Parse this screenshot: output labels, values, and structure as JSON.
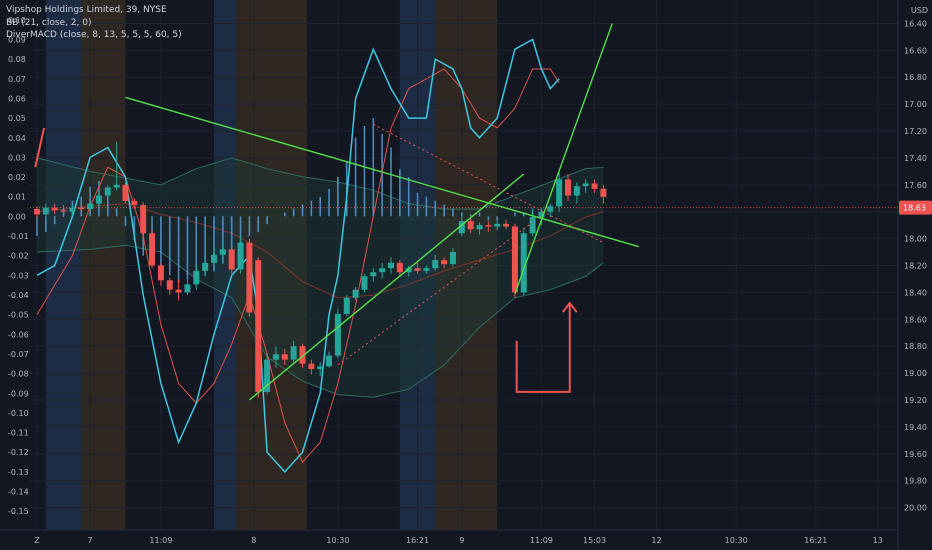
{
  "legend": {
    "title": "Vipshop Holdings Limited, 39, NYSE",
    "bb": "BB (21, close, 2, 0)",
    "macd": "DiverMACD (close, 8, 13, 5, 5, 5, 60, 5)"
  },
  "currency": "USD",
  "current_price_label": "18.63",
  "colors": {
    "background": "#131722",
    "up": "#26a69a",
    "down": "#ef5350",
    "osc_fast": "#3ec7e0",
    "osc_slow": "#e0504a",
    "histogram": "#5b9bd5",
    "bb_band": "#2e6b5e",
    "bb_basis": "#c0392b",
    "trend": "#52e04a",
    "arrow": "#ef5350",
    "session_blue": "#1b2c44",
    "session_orange": "#2f2721"
  },
  "x_axis_labels": [
    {
      "t": 0,
      "text": "Z"
    },
    {
      "t": 6,
      "text": "7"
    },
    {
      "t": 14,
      "text": "11:09"
    },
    {
      "t": 24.5,
      "text": "8"
    },
    {
      "t": 34,
      "text": "10:30"
    },
    {
      "t": 43,
      "text": "16:21"
    },
    {
      "t": 48,
      "text": "9"
    },
    {
      "t": 57,
      "text": "11:09"
    },
    {
      "t": 63,
      "text": "15:03"
    },
    {
      "t": 70,
      "text": "12"
    },
    {
      "t": 79,
      "text": "10:30"
    },
    {
      "t": 88,
      "text": "16:21"
    },
    {
      "t": 95,
      "text": "13"
    }
  ],
  "right_axis_labels": [
    "20.00",
    "19.80",
    "19.60",
    "19.40",
    "19.20",
    "19.00",
    "18.80",
    "18.60",
    "18.40",
    "18.20",
    "18.00",
    "17.80",
    "17.60",
    "17.40",
    "17.20",
    "17.00",
    "16.80",
    "16.60",
    "16.40"
  ],
  "left_axis_labels": [
    "0.10",
    "0.09",
    "0.08",
    "0.07",
    "0.06",
    "0.05",
    "0.04",
    "0.03",
    "0.02",
    "0.01",
    "0.00",
    "-0.01",
    "-0.02",
    "-0.03",
    "-0.04",
    "-0.05",
    "-0.06",
    "-0.07",
    "-0.08",
    "-0.09",
    "-0.10",
    "-0.11",
    "-0.12",
    "-0.13",
    "-0.14",
    "-0.15"
  ],
  "chart_data": {
    "type": "candlestick",
    "symbol": "Vipshop Holdings Limited, 39, NYSE",
    "price_axis_range": [
      16.3,
      20.1
    ],
    "oscillator_axis_range": [
      -0.155,
      0.105
    ],
    "price_ticks": [
      16.4,
      16.6,
      16.8,
      17.0,
      17.2,
      17.4,
      17.6,
      17.8,
      18.0,
      18.2,
      18.4,
      18.6,
      18.8,
      19.0,
      19.2,
      19.4,
      19.6,
      19.8,
      20.0
    ],
    "oscillator_ticks": [
      0.1,
      0.09,
      0.08,
      0.07,
      0.06,
      0.05,
      0.04,
      0.03,
      0.02,
      0.01,
      0.0,
      -0.01,
      -0.02,
      -0.03,
      -0.04,
      -0.05,
      -0.06,
      -0.07,
      -0.08,
      -0.09,
      -0.1,
      -0.11,
      -0.12,
      -0.13,
      -0.14,
      -0.15
    ],
    "candles": [
      {
        "t": 0,
        "o": 18.62,
        "h": 18.64,
        "l": 18.55,
        "c": 18.58
      },
      {
        "t": 1,
        "o": 18.58,
        "h": 18.66,
        "l": 18.52,
        "c": 18.63
      },
      {
        "t": 2,
        "o": 18.63,
        "h": 18.66,
        "l": 18.58,
        "c": 18.61
      },
      {
        "t": 3,
        "o": 18.61,
        "h": 18.65,
        "l": 18.56,
        "c": 18.6
      },
      {
        "t": 4,
        "o": 18.6,
        "h": 18.66,
        "l": 18.57,
        "c": 18.63
      },
      {
        "t": 5,
        "o": 18.63,
        "h": 18.66,
        "l": 18.6,
        "c": 18.62
      },
      {
        "t": 6,
        "o": 18.62,
        "h": 18.68,
        "l": 18.6,
        "c": 18.66
      },
      {
        "t": 7,
        "o": 18.66,
        "h": 18.74,
        "l": 18.64,
        "c": 18.72
      },
      {
        "t": 8,
        "o": 18.72,
        "h": 18.8,
        "l": 18.7,
        "c": 18.78
      },
      {
        "t": 9,
        "o": 18.78,
        "h": 19.12,
        "l": 18.76,
        "c": 18.8
      },
      {
        "t": 10,
        "o": 18.8,
        "h": 18.82,
        "l": 18.66,
        "c": 18.68
      },
      {
        "t": 11,
        "o": 18.68,
        "h": 18.7,
        "l": 18.62,
        "c": 18.65
      },
      {
        "t": 12,
        "o": 18.65,
        "h": 18.67,
        "l": 18.4,
        "c": 18.44
      },
      {
        "t": 13,
        "o": 18.44,
        "h": 18.46,
        "l": 18.18,
        "c": 18.2
      },
      {
        "t": 14,
        "o": 18.2,
        "h": 18.22,
        "l": 18.05,
        "c": 18.09
      },
      {
        "t": 15,
        "o": 18.09,
        "h": 18.11,
        "l": 17.98,
        "c": 18.02
      },
      {
        "t": 16,
        "o": 18.02,
        "h": 18.1,
        "l": 17.94,
        "c": 18.0
      },
      {
        "t": 17,
        "o": 18.0,
        "h": 18.1,
        "l": 17.98,
        "c": 18.06
      },
      {
        "t": 18,
        "o": 18.06,
        "h": 18.2,
        "l": 18.02,
        "c": 18.16
      },
      {
        "t": 19,
        "o": 18.16,
        "h": 18.26,
        "l": 18.12,
        "c": 18.22
      },
      {
        "t": 20,
        "o": 18.22,
        "h": 18.32,
        "l": 18.2,
        "c": 18.28
      },
      {
        "t": 21,
        "o": 18.28,
        "h": 18.36,
        "l": 18.26,
        "c": 18.32
      },
      {
        "t": 22,
        "o": 18.32,
        "h": 18.34,
        "l": 18.14,
        "c": 18.17
      },
      {
        "t": 23,
        "o": 18.17,
        "h": 18.42,
        "l": 18.14,
        "c": 18.37
      },
      {
        "t": 24,
        "o": 18.37,
        "h": 18.4,
        "l": 17.82,
        "c": 17.85
      },
      {
        "t": 25,
        "o": 18.24,
        "h": 18.26,
        "l": 17.22,
        "c": 17.26
      },
      {
        "t": 26,
        "o": 17.26,
        "h": 17.55,
        "l": 17.24,
        "c": 17.5
      },
      {
        "t": 27,
        "o": 17.5,
        "h": 17.6,
        "l": 17.44,
        "c": 17.54
      },
      {
        "t": 28,
        "o": 17.54,
        "h": 17.58,
        "l": 17.46,
        "c": 17.5
      },
      {
        "t": 29,
        "o": 17.5,
        "h": 17.64,
        "l": 17.48,
        "c": 17.6
      },
      {
        "t": 30,
        "o": 17.6,
        "h": 17.62,
        "l": 17.44,
        "c": 17.47
      },
      {
        "t": 31,
        "o": 17.47,
        "h": 17.5,
        "l": 17.39,
        "c": 17.43
      },
      {
        "t": 32,
        "o": 17.43,
        "h": 17.48,
        "l": 17.38,
        "c": 17.45
      },
      {
        "t": 33,
        "o": 17.45,
        "h": 17.56,
        "l": 17.44,
        "c": 17.53
      },
      {
        "t": 34,
        "o": 17.53,
        "h": 17.88,
        "l": 17.51,
        "c": 17.84
      },
      {
        "t": 35,
        "o": 17.84,
        "h": 17.98,
        "l": 17.82,
        "c": 17.96
      },
      {
        "t": 36,
        "o": 17.96,
        "h": 18.04,
        "l": 17.94,
        "c": 18.02
      },
      {
        "t": 37,
        "o": 18.02,
        "h": 18.14,
        "l": 18.0,
        "c": 18.12
      },
      {
        "t": 38,
        "o": 18.12,
        "h": 18.18,
        "l": 18.08,
        "c": 18.15
      },
      {
        "t": 39,
        "o": 18.15,
        "h": 18.22,
        "l": 18.1,
        "c": 18.18
      },
      {
        "t": 40,
        "o": 18.18,
        "h": 18.26,
        "l": 18.14,
        "c": 18.22
      },
      {
        "t": 41,
        "o": 18.22,
        "h": 18.24,
        "l": 18.12,
        "c": 18.15
      },
      {
        "t": 42,
        "o": 18.15,
        "h": 18.2,
        "l": 18.12,
        "c": 18.18
      },
      {
        "t": 43,
        "o": 18.18,
        "h": 18.22,
        "l": 18.14,
        "c": 18.16
      },
      {
        "t": 44,
        "o": 18.16,
        "h": 18.2,
        "l": 18.14,
        "c": 18.18
      },
      {
        "t": 45,
        "o": 18.18,
        "h": 18.28,
        "l": 18.16,
        "c": 18.24
      },
      {
        "t": 46,
        "o": 18.24,
        "h": 18.26,
        "l": 18.18,
        "c": 18.21
      },
      {
        "t": 47,
        "o": 18.21,
        "h": 18.33,
        "l": 18.19,
        "c": 18.3
      },
      {
        "t": 48,
        "o": 18.44,
        "h": 18.58,
        "l": 18.42,
        "c": 18.53
      },
      {
        "t": 49,
        "o": 18.53,
        "h": 18.56,
        "l": 18.44,
        "c": 18.47
      },
      {
        "t": 50,
        "o": 18.47,
        "h": 18.52,
        "l": 18.43,
        "c": 18.5
      },
      {
        "t": 51,
        "o": 18.5,
        "h": 18.53,
        "l": 18.45,
        "c": 18.49
      },
      {
        "t": 52,
        "o": 18.49,
        "h": 18.54,
        "l": 18.46,
        "c": 18.51
      },
      {
        "t": 53,
        "o": 18.51,
        "h": 18.54,
        "l": 18.47,
        "c": 18.49
      },
      {
        "t": 54,
        "o": 18.49,
        "h": 18.51,
        "l": 17.96,
        "c": 18.0
      },
      {
        "t": 55,
        "o": 18.0,
        "h": 18.48,
        "l": 17.98,
        "c": 18.44
      },
      {
        "t": 56,
        "o": 18.44,
        "h": 18.6,
        "l": 18.42,
        "c": 18.56
      },
      {
        "t": 57,
        "o": 18.56,
        "h": 18.62,
        "l": 18.5,
        "c": 18.6
      },
      {
        "t": 58,
        "o": 18.6,
        "h": 18.66,
        "l": 18.56,
        "c": 18.64
      },
      {
        "t": 59,
        "o": 18.64,
        "h": 18.9,
        "l": 18.6,
        "c": 18.84
      },
      {
        "t": 60,
        "o": 18.84,
        "h": 18.88,
        "l": 18.68,
        "c": 18.72
      },
      {
        "t": 61,
        "o": 18.72,
        "h": 18.82,
        "l": 18.66,
        "c": 18.79
      },
      {
        "t": 62,
        "o": 18.79,
        "h": 18.84,
        "l": 18.74,
        "c": 18.81
      },
      {
        "t": 63,
        "o": 18.81,
        "h": 18.84,
        "l": 18.74,
        "c": 18.77
      },
      {
        "t": 64,
        "o": 18.77,
        "h": 18.8,
        "l": 18.66,
        "c": 18.71
      }
    ],
    "bollinger": {
      "upper": [
        [
          0,
          19.0
        ],
        [
          6,
          18.9
        ],
        [
          10,
          18.85
        ],
        [
          14,
          18.8
        ],
        [
          18,
          18.92
        ],
        [
          22,
          19.0
        ],
        [
          26,
          18.92
        ],
        [
          30,
          18.86
        ],
        [
          34,
          18.82
        ],
        [
          38,
          18.76
        ],
        [
          42,
          18.66
        ],
        [
          46,
          18.62
        ],
        [
          50,
          18.62
        ],
        [
          54,
          18.72
        ],
        [
          58,
          18.82
        ],
        [
          62,
          18.92
        ],
        [
          64,
          18.93
        ]
      ],
      "basis": [
        [
          0,
          18.6
        ],
        [
          6,
          18.64
        ],
        [
          10,
          18.66
        ],
        [
          14,
          18.58
        ],
        [
          18,
          18.52
        ],
        [
          22,
          18.44
        ],
        [
          26,
          18.3
        ],
        [
          30,
          18.08
        ],
        [
          34,
          17.96
        ],
        [
          38,
          17.98
        ],
        [
          42,
          18.06
        ],
        [
          46,
          18.16
        ],
        [
          50,
          18.24
        ],
        [
          54,
          18.32
        ],
        [
          58,
          18.42
        ],
        [
          62,
          18.56
        ],
        [
          64,
          18.6
        ]
      ],
      "lower": [
        [
          0,
          18.3
        ],
        [
          6,
          18.32
        ],
        [
          10,
          18.35
        ],
        [
          14,
          18.3
        ],
        [
          18,
          18.1
        ],
        [
          22,
          17.96
        ],
        [
          26,
          17.52
        ],
        [
          30,
          17.34
        ],
        [
          34,
          17.24
        ],
        [
          38,
          17.22
        ],
        [
          42,
          17.28
        ],
        [
          46,
          17.46
        ],
        [
          50,
          17.74
        ],
        [
          54,
          17.96
        ],
        [
          58,
          18.02
        ],
        [
          62,
          18.12
        ],
        [
          64,
          18.22
        ]
      ]
    },
    "oscillator_fast": [
      [
        0,
        -0.03
      ],
      [
        2,
        -0.025
      ],
      [
        4,
        0.0
      ],
      [
        6,
        0.03
      ],
      [
        8,
        0.035
      ],
      [
        10,
        0.02
      ],
      [
        12,
        -0.04
      ],
      [
        14,
        -0.085
      ],
      [
        16,
        -0.115
      ],
      [
        18,
        -0.095
      ],
      [
        20,
        -0.06
      ],
      [
        22,
        -0.03
      ],
      [
        24,
        -0.02
      ],
      [
        25,
        -0.05
      ],
      [
        26,
        -0.12
      ],
      [
        28,
        -0.13
      ],
      [
        30,
        -0.12
      ],
      [
        32,
        -0.09
      ],
      [
        33,
        -0.05
      ],
      [
        34,
        -0.03
      ],
      [
        35,
        0.01
      ],
      [
        36,
        0.06
      ],
      [
        38,
        0.085
      ],
      [
        40,
        0.065
      ],
      [
        42,
        0.05
      ],
      [
        44,
        0.05
      ],
      [
        45,
        0.08
      ],
      [
        47,
        0.075
      ],
      [
        48,
        0.065
      ],
      [
        49,
        0.045
      ],
      [
        50,
        0.04
      ],
      [
        52,
        0.05
      ],
      [
        54,
        0.085
      ],
      [
        56,
        0.09
      ],
      [
        57,
        0.075
      ],
      [
        58,
        0.065
      ],
      [
        59,
        0.07
      ]
    ],
    "oscillator_slow": [
      [
        0,
        -0.05
      ],
      [
        2,
        -0.035
      ],
      [
        4,
        -0.02
      ],
      [
        6,
        0.005
      ],
      [
        8,
        0.025
      ],
      [
        10,
        0.02
      ],
      [
        12,
        -0.01
      ],
      [
        14,
        -0.055
      ],
      [
        16,
        -0.085
      ],
      [
        18,
        -0.095
      ],
      [
        20,
        -0.085
      ],
      [
        22,
        -0.065
      ],
      [
        24,
        -0.04
      ],
      [
        26,
        -0.07
      ],
      [
        28,
        -0.105
      ],
      [
        30,
        -0.125
      ],
      [
        32,
        -0.115
      ],
      [
        34,
        -0.085
      ],
      [
        36,
        -0.045
      ],
      [
        38,
        0.0
      ],
      [
        40,
        0.045
      ],
      [
        42,
        0.065
      ],
      [
        44,
        0.07
      ],
      [
        46,
        0.075
      ],
      [
        48,
        0.065
      ],
      [
        50,
        0.05
      ],
      [
        52,
        0.045
      ],
      [
        54,
        0.055
      ],
      [
        56,
        0.075
      ],
      [
        58,
        0.075
      ],
      [
        59,
        0.068
      ]
    ],
    "histogram": [
      -0.01,
      -0.008,
      -0.004,
      0.004,
      0.008,
      0.01,
      0.015,
      0.018,
      0.012,
      0.004,
      -0.005,
      -0.012,
      -0.02,
      -0.025,
      -0.028,
      -0.03,
      -0.034,
      -0.032,
      -0.035,
      -0.03,
      -0.028,
      -0.024,
      -0.02,
      -0.015,
      -0.01,
      -0.008,
      -0.004,
      0.0,
      0.002,
      0.004,
      0.006,
      0.008,
      0.01,
      0.014,
      0.02,
      0.028,
      0.04,
      0.046,
      0.05,
      0.042,
      0.035,
      0.024,
      0.02,
      0.012,
      0.01,
      0.008,
      0.006,
      0.004,
      0.002,
      0.001,
      0.002,
      -0.002,
      -0.002,
      0.0,
      0.002,
      0.002,
      0.004,
      0.004
    ],
    "sessions": [
      {
        "start": 1,
        "end": 5,
        "kind": "blue"
      },
      {
        "start": 5,
        "end": 10,
        "kind": "orange"
      },
      {
        "start": 20,
        "end": 22.5,
        "kind": "blue"
      },
      {
        "start": 22.5,
        "end": 30.5,
        "kind": "orange"
      },
      {
        "start": 41,
        "end": 45,
        "kind": "blue"
      },
      {
        "start": 45,
        "end": 52,
        "kind": "orange"
      }
    ],
    "trendlines": [
      {
        "from": [
          10,
          19.45
        ],
        "to": [
          68,
          18.34
        ],
        "style": "solid",
        "color": "trend"
      },
      {
        "from": [
          24,
          17.2
        ],
        "to": [
          55,
          18.88
        ],
        "style": "solid",
        "color": "trend"
      },
      {
        "from": [
          54,
          17.99
        ],
        "to": [
          65,
          20.0
        ],
        "style": "solid",
        "color": "trend"
      },
      {
        "from": [
          38,
          19.25
        ],
        "to": [
          64,
          18.37
        ],
        "style": "dotted",
        "color": "down"
      },
      {
        "from": [
          34,
          17.46
        ],
        "to": [
          56,
          18.52
        ],
        "style": "dotted",
        "color": "down"
      }
    ],
    "annotations": {
      "arrow_path_left": [
        [
          54.2,
          17.64
        ],
        [
          54.2,
          17.26
        ],
        [
          60.2,
          17.26
        ],
        [
          60.2,
          17.92
        ]
      ],
      "small_arrow": {
        "from": [
          -0.2,
          0.025
        ],
        "to": [
          0.8,
          0.045
        ]
      }
    }
  }
}
